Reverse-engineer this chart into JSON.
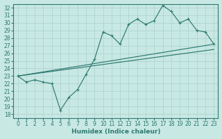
{
  "title": "",
  "xlabel": "Humidex (Indice chaleur)",
  "ylabel": "",
  "xlim": [
    -0.5,
    23.5
  ],
  "ylim": [
    17.5,
    32.5
  ],
  "xticks": [
    0,
    1,
    2,
    3,
    4,
    5,
    6,
    7,
    8,
    9,
    10,
    11,
    12,
    13,
    14,
    15,
    16,
    17,
    18,
    19,
    20,
    21,
    22,
    23
  ],
  "yticks": [
    18,
    19,
    20,
    21,
    22,
    23,
    24,
    25,
    26,
    27,
    28,
    29,
    30,
    31,
    32
  ],
  "background_color": "#c8e8e4",
  "grid_color": "#b0d4d0",
  "line_color": "#2d7a6e",
  "line1_x": [
    0,
    1,
    2,
    3,
    4,
    5,
    6,
    7,
    8,
    9,
    10,
    11,
    12,
    13,
    14,
    15,
    16,
    17,
    18,
    19,
    20,
    21,
    22,
    23
  ],
  "line1_y": [
    23.0,
    22.2,
    22.5,
    22.2,
    22.0,
    18.5,
    20.2,
    21.2,
    23.2,
    25.2,
    28.8,
    28.3,
    27.2,
    29.8,
    30.5,
    29.8,
    30.3,
    32.3,
    31.5,
    30.0,
    30.5,
    29.0,
    28.8,
    27.2
  ],
  "line2_x": [
    0,
    23
  ],
  "line2_y": [
    23.0,
    27.2
  ],
  "line3_x": [
    0,
    23
  ],
  "line3_y": [
    23.0,
    26.5
  ],
  "tick_fontsize": 5.5,
  "label_fontsize": 6.5
}
